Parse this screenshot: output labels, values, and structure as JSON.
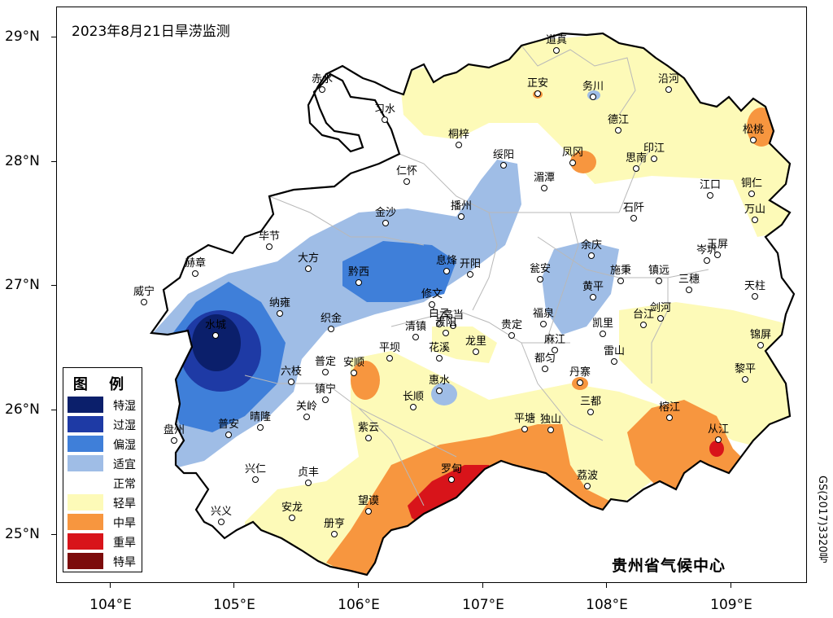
{
  "title": "2023年8月21日旱涝监测",
  "agency": "贵州省气候中心",
  "approval_code": "GS(2017)3320号",
  "axes": {
    "y_labels": [
      "29°N",
      "28°N",
      "27°N",
      "26°N",
      "25°N"
    ],
    "x_labels": [
      "104°E",
      "105°E",
      "106°E",
      "107°E",
      "108°E",
      "109°E"
    ]
  },
  "legend": {
    "title": "图 例",
    "items": [
      {
        "label": "特湿",
        "color": "#0b1f6b"
      },
      {
        "label": "过湿",
        "color": "#1e3aa5"
      },
      {
        "label": "偏湿",
        "color": "#3f7fd9"
      },
      {
        "label": "适宜",
        "color": "#9fbde6"
      },
      {
        "label": "正常",
        "color": "#ffffff"
      },
      {
        "label": "轻旱",
        "color": "#fdfab8"
      },
      {
        "label": "中旱",
        "color": "#f7963f"
      },
      {
        "label": "重旱",
        "color": "#d8141a"
      },
      {
        "label": "特旱",
        "color": "#7c0b0b"
      }
    ]
  },
  "cities": [
    {
      "name": "道真"
    },
    {
      "name": "正安"
    },
    {
      "name": "务川"
    },
    {
      "name": "沿河"
    },
    {
      "name": "赤水"
    },
    {
      "name": "习水"
    },
    {
      "name": "桐梓"
    },
    {
      "name": "德江"
    },
    {
      "name": "松桃"
    },
    {
      "name": "印江"
    },
    {
      "name": "思南"
    },
    {
      "name": "凤冈"
    },
    {
      "name": "绥阳"
    },
    {
      "name": "仁怀"
    },
    {
      "name": "湄潭"
    },
    {
      "name": "江口"
    },
    {
      "name": "铜仁"
    },
    {
      "name": "石阡"
    },
    {
      "name": "万山"
    },
    {
      "name": "金沙"
    },
    {
      "name": "播州"
    },
    {
      "name": "毕节"
    },
    {
      "name": "大方"
    },
    {
      "name": "赫章"
    },
    {
      "name": "黔西"
    },
    {
      "name": "息烽"
    },
    {
      "name": "开阳"
    },
    {
      "name": "余庆"
    },
    {
      "name": "岑巩"
    },
    {
      "name": "玉屏"
    },
    {
      "name": "威宁"
    },
    {
      "name": "纳雍"
    },
    {
      "name": "瓮安"
    },
    {
      "name": "施秉"
    },
    {
      "name": "镇远"
    },
    {
      "name": "三穗"
    },
    {
      "name": "天柱"
    },
    {
      "name": "修文"
    },
    {
      "name": "黄平"
    },
    {
      "name": "水城"
    },
    {
      "name": "织金"
    },
    {
      "name": "白云"
    },
    {
      "name": "乌当"
    },
    {
      "name": "福泉"
    },
    {
      "name": "台江"
    },
    {
      "name": "剑河"
    },
    {
      "name": "清镇"
    },
    {
      "name": "贵阳"
    },
    {
      "name": "贵定"
    },
    {
      "name": "凯里"
    },
    {
      "name": "锦屏"
    },
    {
      "name": "平坝"
    },
    {
      "name": "花溪"
    },
    {
      "name": "龙里"
    },
    {
      "name": "麻江"
    },
    {
      "name": "雷山"
    },
    {
      "name": "普定"
    },
    {
      "name": "安顺"
    },
    {
      "name": "六枝"
    },
    {
      "name": "都匀"
    },
    {
      "name": "黎平"
    },
    {
      "name": "镇宁"
    },
    {
      "name": "惠水"
    },
    {
      "name": "丹寨"
    },
    {
      "name": "长顺"
    },
    {
      "name": "关岭"
    },
    {
      "name": "三都"
    },
    {
      "name": "晴隆"
    },
    {
      "name": "榕江"
    },
    {
      "name": "普安"
    },
    {
      "name": "平塘"
    },
    {
      "name": "独山"
    },
    {
      "name": "盘州"
    },
    {
      "name": "紫云"
    },
    {
      "name": "从江"
    },
    {
      "name": "兴仁"
    },
    {
      "name": "贞丰"
    },
    {
      "name": "罗甸"
    },
    {
      "name": "荔波"
    },
    {
      "name": "望谟"
    },
    {
      "name": "安龙"
    },
    {
      "name": "兴义"
    },
    {
      "name": "册亨"
    }
  ]
}
